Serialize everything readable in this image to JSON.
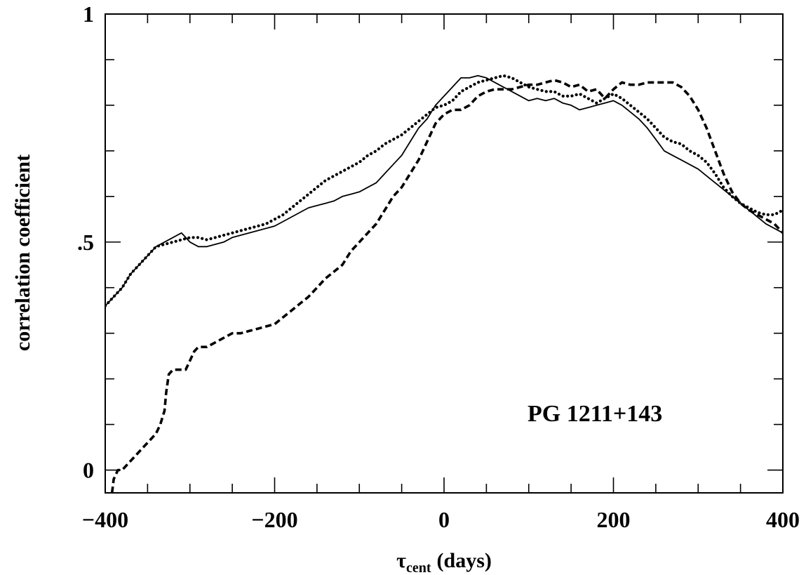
{
  "chart_data": {
    "type": "line",
    "title": "",
    "xlabel": "τ",
    "xlabel_sub": "cent",
    "xlabel_unit": "(days)",
    "ylabel": "correlation coefficient",
    "xlim": [
      -400,
      400
    ],
    "ylim": [
      -0.05,
      1.0
    ],
    "x_ticks": [
      {
        "value": -400,
        "label": "−400"
      },
      {
        "value": -200,
        "label": "−200"
      },
      {
        "value": 0,
        "label": "0"
      },
      {
        "value": 200,
        "label": "200"
      },
      {
        "value": 400,
        "label": "400"
      }
    ],
    "y_ticks": [
      {
        "value": 0,
        "label": "0"
      },
      {
        "value": 0.5,
        "label": ".5"
      },
      {
        "value": 1,
        "label": "1"
      }
    ],
    "x_minor_step": 50,
    "y_minor_step": 0.1,
    "grid": false,
    "annotations": [
      {
        "text": "PG 1211+143",
        "x": 100,
        "y": 0.1
      }
    ],
    "series": [
      {
        "style": "solid",
        "x": [
          -400,
          -390,
          -380,
          -370,
          -360,
          -350,
          -340,
          -330,
          -320,
          -310,
          -300,
          -290,
          -280,
          -270,
          -260,
          -250,
          -240,
          -230,
          -220,
          -210,
          -200,
          -190,
          -180,
          -170,
          -160,
          -150,
          -140,
          -130,
          -120,
          -110,
          -100,
          -90,
          -80,
          -70,
          -60,
          -50,
          -40,
          -30,
          -20,
          -10,
          0,
          10,
          20,
          30,
          40,
          50,
          60,
          70,
          80,
          90,
          100,
          110,
          120,
          130,
          140,
          150,
          160,
          170,
          180,
          190,
          200,
          210,
          220,
          230,
          240,
          250,
          260,
          270,
          280,
          290,
          300,
          310,
          320,
          330,
          340,
          350,
          360,
          370,
          380,
          390,
          400
        ],
        "y": [
          0.36,
          0.38,
          0.4,
          0.43,
          0.45,
          0.47,
          0.49,
          0.5,
          0.51,
          0.52,
          0.5,
          0.49,
          0.49,
          0.495,
          0.5,
          0.51,
          0.515,
          0.52,
          0.525,
          0.53,
          0.535,
          0.545,
          0.555,
          0.565,
          0.575,
          0.58,
          0.585,
          0.59,
          0.6,
          0.605,
          0.61,
          0.62,
          0.63,
          0.65,
          0.67,
          0.69,
          0.72,
          0.75,
          0.77,
          0.8,
          0.82,
          0.84,
          0.86,
          0.86,
          0.865,
          0.86,
          0.85,
          0.84,
          0.83,
          0.82,
          0.81,
          0.815,
          0.81,
          0.815,
          0.805,
          0.8,
          0.79,
          0.795,
          0.8,
          0.805,
          0.81,
          0.8,
          0.785,
          0.77,
          0.75,
          0.725,
          0.7,
          0.69,
          0.68,
          0.67,
          0.66,
          0.645,
          0.63,
          0.615,
          0.6,
          0.585,
          0.57,
          0.555,
          0.54,
          0.53,
          0.52
        ]
      },
      {
        "style": "dotted",
        "x": [
          -400,
          -390,
          -380,
          -370,
          -360,
          -350,
          -340,
          -330,
          -320,
          -310,
          -300,
          -290,
          -280,
          -270,
          -260,
          -250,
          -240,
          -230,
          -220,
          -210,
          -200,
          -190,
          -180,
          -170,
          -160,
          -150,
          -140,
          -130,
          -120,
          -110,
          -100,
          -90,
          -80,
          -70,
          -60,
          -50,
          -40,
          -30,
          -20,
          -10,
          0,
          10,
          20,
          30,
          40,
          50,
          60,
          70,
          80,
          90,
          100,
          110,
          120,
          130,
          140,
          150,
          160,
          170,
          180,
          190,
          200,
          210,
          220,
          230,
          240,
          250,
          260,
          270,
          280,
          290,
          300,
          310,
          320,
          330,
          340,
          350,
          360,
          370,
          380,
          390,
          400
        ],
        "y": [
          0.36,
          0.38,
          0.4,
          0.43,
          0.45,
          0.47,
          0.49,
          0.495,
          0.5,
          0.505,
          0.51,
          0.51,
          0.505,
          0.51,
          0.515,
          0.52,
          0.525,
          0.53,
          0.535,
          0.54,
          0.55,
          0.56,
          0.575,
          0.59,
          0.605,
          0.62,
          0.635,
          0.645,
          0.655,
          0.665,
          0.675,
          0.69,
          0.7,
          0.715,
          0.725,
          0.735,
          0.75,
          0.765,
          0.78,
          0.795,
          0.8,
          0.81,
          0.83,
          0.84,
          0.85,
          0.855,
          0.86,
          0.865,
          0.86,
          0.85,
          0.84,
          0.835,
          0.83,
          0.83,
          0.82,
          0.82,
          0.825,
          0.815,
          0.805,
          0.815,
          0.825,
          0.815,
          0.8,
          0.785,
          0.77,
          0.75,
          0.73,
          0.72,
          0.715,
          0.7,
          0.69,
          0.675,
          0.65,
          0.62,
          0.6,
          0.585,
          0.575,
          0.565,
          0.56,
          0.56,
          0.57
        ]
      },
      {
        "style": "dashed",
        "x": [
          -392,
          -390,
          -385,
          -380,
          -375,
          -370,
          -365,
          -360,
          -355,
          -350,
          -345,
          -340,
          -335,
          -330,
          -328,
          -325,
          -320,
          -315,
          -310,
          -305,
          -300,
          -295,
          -290,
          -285,
          -280,
          -270,
          -260,
          -250,
          -240,
          -230,
          -220,
          -210,
          -200,
          -190,
          -180,
          -170,
          -160,
          -150,
          -140,
          -130,
          -120,
          -110,
          -100,
          -90,
          -80,
          -70,
          -60,
          -50,
          -40,
          -30,
          -20,
          -10,
          0,
          10,
          20,
          30,
          40,
          50,
          60,
          70,
          80,
          90,
          100,
          110,
          120,
          130,
          140,
          150,
          160,
          170,
          180,
          190,
          200,
          210,
          220,
          230,
          240,
          250,
          260,
          270,
          280,
          290,
          300,
          310,
          320,
          330,
          340,
          350,
          360,
          370,
          380,
          390,
          400
        ],
        "y": [
          -0.05,
          -0.02,
          0.0,
          0.0,
          0.01,
          0.02,
          0.03,
          0.04,
          0.05,
          0.06,
          0.07,
          0.08,
          0.1,
          0.13,
          0.17,
          0.21,
          0.22,
          0.22,
          0.22,
          0.22,
          0.24,
          0.26,
          0.27,
          0.27,
          0.27,
          0.28,
          0.29,
          0.3,
          0.3,
          0.305,
          0.31,
          0.315,
          0.32,
          0.335,
          0.35,
          0.365,
          0.38,
          0.4,
          0.42,
          0.435,
          0.45,
          0.48,
          0.5,
          0.52,
          0.54,
          0.57,
          0.6,
          0.62,
          0.65,
          0.68,
          0.72,
          0.76,
          0.78,
          0.79,
          0.79,
          0.8,
          0.82,
          0.83,
          0.835,
          0.835,
          0.835,
          0.84,
          0.845,
          0.845,
          0.85,
          0.855,
          0.85,
          0.84,
          0.845,
          0.83,
          0.835,
          0.815,
          0.835,
          0.85,
          0.845,
          0.845,
          0.85,
          0.85,
          0.85,
          0.85,
          0.84,
          0.82,
          0.79,
          0.75,
          0.7,
          0.65,
          0.61,
          0.585,
          0.57,
          0.56,
          0.55,
          0.54,
          0.52
        ]
      }
    ]
  }
}
